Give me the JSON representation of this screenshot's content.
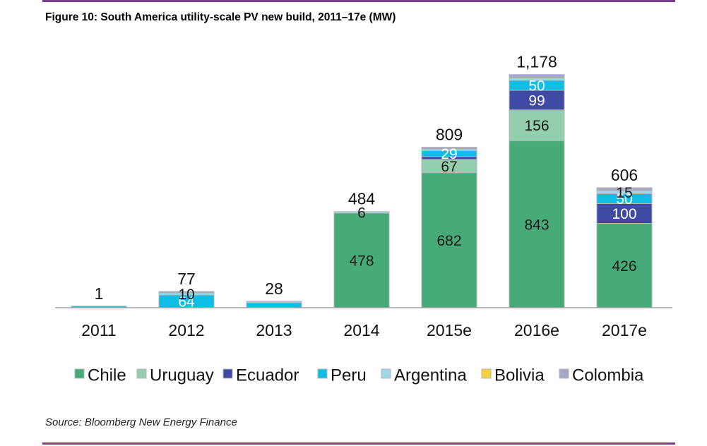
{
  "title": "Figure 10: South America utility-scale PV new build, 2011–17e (MW)",
  "source": "Source: Bloomberg New Energy Finance",
  "chart_data": {
    "type": "bar",
    "stacked": true,
    "title": "Figure 10: South America utility-scale PV new build, 2011–17e (MW)",
    "xlabel": "",
    "ylabel": "",
    "ylim": [
      0,
      1180
    ],
    "grid": false,
    "legend_position": "bottom",
    "categories": [
      "2011",
      "2012",
      "2013",
      "2014",
      "2015e",
      "2016e",
      "2017e"
    ],
    "totals": [
      1,
      77,
      28,
      484,
      809,
      1178,
      606
    ],
    "total_labels": [
      "1",
      "77",
      "28",
      "484",
      "809",
      "1,178",
      "606"
    ],
    "series": [
      {
        "name": "Chile",
        "color": "#46ab78",
        "label_color": "#1a1a1a",
        "values": [
          0,
          0,
          0,
          478,
          682,
          843,
          426
        ]
      },
      {
        "name": "Uruguay",
        "color": "#93cfae",
        "label_color": "#1a1a1a",
        "values": [
          0,
          0,
          0,
          0,
          67,
          156,
          0
        ]
      },
      {
        "name": "Ecuador",
        "color": "#3f4aa5",
        "label_color": "#ffffff",
        "values": [
          0,
          0,
          0,
          0,
          15,
          99,
          100
        ]
      },
      {
        "name": "Peru",
        "color": "#10bde6",
        "label_color": "#ffffff",
        "values": [
          1,
          64,
          25,
          0,
          29,
          50,
          50
        ]
      },
      {
        "name": "Argentina",
        "color": "#9fd6ea",
        "label_color": "#1a1a1a",
        "values": [
          0,
          10,
          3,
          6,
          6,
          12,
          15
        ]
      },
      {
        "name": "Bolivia",
        "color": "#f4d13a",
        "label_color": "#1a1a1a",
        "values": [
          0,
          0,
          0,
          0,
          0,
          0,
          0
        ]
      },
      {
        "name": "Colombia",
        "color": "#a8a7c9",
        "label_color": "#1a1a1a",
        "values": [
          0,
          3,
          0,
          0,
          10,
          18,
          15
        ]
      }
    ],
    "data_labels": [
      {
        "category": "2012",
        "series": "Peru",
        "text": "64"
      },
      {
        "category": "2012",
        "series": "Argentina",
        "text": "10"
      },
      {
        "category": "2014",
        "series": "Chile",
        "text": "478"
      },
      {
        "category": "2014",
        "series": "Argentina",
        "text": "6"
      },
      {
        "category": "2015e",
        "series": "Chile",
        "text": "682"
      },
      {
        "category": "2015e",
        "series": "Uruguay",
        "text": "67"
      },
      {
        "category": "2015e",
        "series": "Peru",
        "text": "29"
      },
      {
        "category": "2016e",
        "series": "Chile",
        "text": "843"
      },
      {
        "category": "2016e",
        "series": "Uruguay",
        "text": "156"
      },
      {
        "category": "2016e",
        "series": "Ecuador",
        "text": "99"
      },
      {
        "category": "2016e",
        "series": "Peru",
        "text": "50"
      },
      {
        "category": "2017e",
        "series": "Chile",
        "text": "426"
      },
      {
        "category": "2017e",
        "series": "Ecuador",
        "text": "100"
      },
      {
        "category": "2017e",
        "series": "Peru",
        "text": "50"
      },
      {
        "category": "2017e",
        "series": "Argentina",
        "text": "15"
      }
    ]
  }
}
